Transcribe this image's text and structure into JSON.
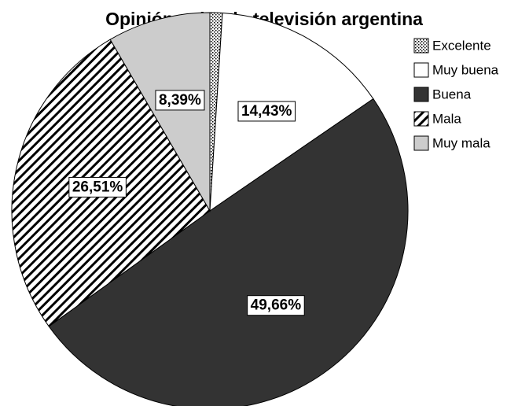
{
  "chart_data": {
    "type": "pie",
    "title": "Opinión sobre la televisión argentina",
    "categories": [
      "Excelente",
      "Muy buena",
      "Buena",
      "Mala",
      "Muy mala"
    ],
    "values": [
      1.01,
      14.43,
      49.66,
      26.51,
      8.39
    ],
    "value_labels": [
      null,
      "14,43%",
      "49,66%",
      "26,51%",
      "8,39%"
    ],
    "colors": [
      "#ffffff",
      "#ffffff",
      "#333333",
      "#ffffff",
      "#cccccc"
    ],
    "patterns": [
      "dots",
      null,
      null,
      "stripes",
      null
    ],
    "legend": "top-right"
  }
}
